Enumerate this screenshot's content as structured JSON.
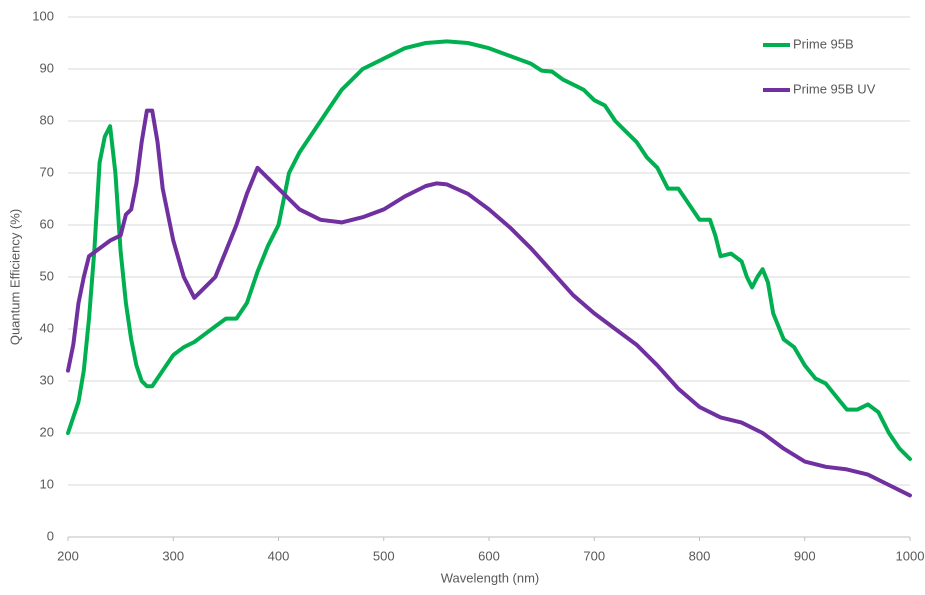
{
  "chart_data": {
    "type": "line",
    "xlabel": "Wavelength (nm)",
    "ylabel": "Quantum Efficiency (%)",
    "xlim": [
      200,
      1000
    ],
    "xticks": [
      200,
      300,
      400,
      500,
      600,
      700,
      800,
      900,
      1000
    ],
    "ylim": [
      0,
      100
    ],
    "yticks": [
      0,
      10,
      20,
      30,
      40,
      50,
      60,
      70,
      80,
      90,
      100
    ],
    "grid": true,
    "legend": "upper right",
    "series": [
      {
        "name": "Prime 95B",
        "color": "#00b050",
        "x": [
          200,
          210,
          215,
          220,
          225,
          230,
          235,
          240,
          245,
          250,
          255,
          260,
          265,
          270,
          275,
          280,
          290,
          300,
          310,
          320,
          330,
          340,
          350,
          360,
          370,
          380,
          390,
          400,
          405,
          410,
          420,
          430,
          440,
          450,
          460,
          470,
          480,
          490,
          500,
          510,
          520,
          540,
          560,
          580,
          600,
          620,
          640,
          650,
          660,
          670,
          680,
          690,
          700,
          710,
          720,
          730,
          740,
          750,
          760,
          770,
          780,
          790,
          800,
          810,
          815,
          820,
          830,
          840,
          845,
          850,
          855,
          860,
          865,
          870,
          880,
          890,
          900,
          910,
          920,
          930,
          940,
          950,
          960,
          970,
          980,
          990,
          1000
        ],
        "values": [
          20,
          26,
          32,
          42,
          55,
          72,
          77,
          79,
          70,
          55,
          45,
          38,
          33,
          30,
          29,
          29,
          32,
          35,
          36.5,
          37.5,
          39,
          40.5,
          42,
          42,
          45,
          51,
          56,
          60,
          65,
          70,
          74,
          77,
          80,
          83,
          86,
          88,
          90,
          91,
          92,
          93,
          94,
          95,
          95.3,
          95,
          94,
          92.5,
          91,
          89.7,
          89.5,
          88,
          87,
          86,
          84,
          83,
          80,
          78,
          76,
          73,
          71,
          67,
          67,
          64,
          61,
          61,
          58,
          54,
          54.5,
          53,
          50,
          48,
          50,
          51.5,
          49,
          43,
          38,
          36.5,
          33,
          30.5,
          29.5,
          27,
          24.5,
          24.5,
          25.5,
          24,
          20,
          17,
          15
        ]
      },
      {
        "name": "Prime 95B UV",
        "color": "#7030a0",
        "x": [
          200,
          205,
          210,
          215,
          220,
          230,
          240,
          250,
          255,
          260,
          265,
          270,
          275,
          280,
          285,
          290,
          300,
          310,
          320,
          330,
          340,
          350,
          360,
          370,
          380,
          390,
          400,
          410,
          420,
          440,
          460,
          480,
          500,
          520,
          540,
          550,
          560,
          580,
          600,
          620,
          640,
          660,
          680,
          700,
          720,
          740,
          760,
          780,
          800,
          820,
          840,
          860,
          880,
          900,
          920,
          940,
          960,
          980,
          1000
        ],
        "values": [
          32,
          37,
          45,
          50,
          54,
          55.5,
          57,
          58,
          62,
          63,
          68,
          76,
          82,
          82,
          76,
          67,
          57,
          50,
          46,
          48,
          50,
          55,
          60,
          66,
          71,
          69,
          67,
          65,
          63,
          61,
          60.5,
          61.5,
          63,
          65.5,
          67.5,
          68,
          67.8,
          66,
          63,
          59.5,
          55.5,
          51,
          46.5,
          43,
          40,
          37,
          33,
          28.5,
          25,
          23,
          22,
          20,
          17,
          14.5,
          13.5,
          13,
          12,
          10,
          8
        ]
      }
    ]
  }
}
